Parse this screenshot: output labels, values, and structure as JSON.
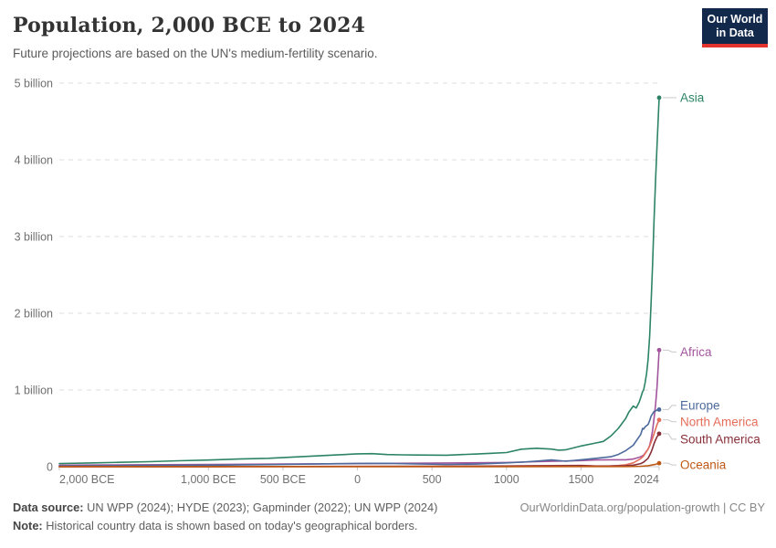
{
  "header": {
    "title": "Population, 2,000 BCE to 2024",
    "subtitle": "Future projections are based on the UN's medium-fertility scenario.",
    "logo": {
      "line1": "Our World",
      "line2": "in Data",
      "bg": "#12294b",
      "accent": "#e5332d"
    }
  },
  "footer": {
    "source_label": "Data source:",
    "source_text": " UN WPP (2024); HYDE (2023); Gapminder (2022); UN WPP (2024)",
    "note_label": "Note:",
    "note_text": " Historical country data is shown based on today's geographical borders.",
    "credit": "OurWorldinData.org/population-growth | CC BY"
  },
  "chart_data": {
    "type": "line",
    "title": "Population, 2,000 BCE to 2024",
    "subtitle": "Future projections are based on the UN's medium-fertility scenario.",
    "unit": "billion people",
    "xlim": [
      -2000,
      2024
    ],
    "ylim": [
      0,
      5
    ],
    "grid": "horizontal-dashed",
    "legend_position": "right-end-labels",
    "colors": {
      "grid": "#dedede",
      "axis": "#c8c8c8",
      "leader": "#c9c9c9"
    },
    "y_ticks": [
      {
        "value": 0,
        "label": "0"
      },
      {
        "value": 1,
        "label": "1 billion"
      },
      {
        "value": 2,
        "label": "2 billion"
      },
      {
        "value": 3,
        "label": "3 billion"
      },
      {
        "value": 4,
        "label": "4 billion"
      },
      {
        "value": 5,
        "label": "5 billion"
      }
    ],
    "x_ticks": [
      {
        "value": -2000,
        "label": "2,000 BCE"
      },
      {
        "value": -1000,
        "label": "1,000 BCE"
      },
      {
        "value": -500,
        "label": "500 BCE"
      },
      {
        "value": 0,
        "label": "0"
      },
      {
        "value": 500,
        "label": "500"
      },
      {
        "value": 1000,
        "label": "1000"
      },
      {
        "value": 1500,
        "label": "1500"
      },
      {
        "value": 2024,
        "label": "2024"
      }
    ],
    "series": [
      {
        "name": "Asia",
        "color": "#2C8465",
        "end_value_billion": 4.81,
        "points": [
          [
            -2000,
            0.042
          ],
          [
            -1800,
            0.049
          ],
          [
            -1600,
            0.057
          ],
          [
            -1400,
            0.066
          ],
          [
            -1200,
            0.077
          ],
          [
            -1000,
            0.087
          ],
          [
            -800,
            0.1
          ],
          [
            -600,
            0.11
          ],
          [
            -400,
            0.128
          ],
          [
            -200,
            0.148
          ],
          [
            0,
            0.168
          ],
          [
            100,
            0.17
          ],
          [
            200,
            0.158
          ],
          [
            300,
            0.155
          ],
          [
            400,
            0.152
          ],
          [
            500,
            0.151
          ],
          [
            600,
            0.15
          ],
          [
            700,
            0.158
          ],
          [
            800,
            0.166
          ],
          [
            900,
            0.175
          ],
          [
            1000,
            0.185
          ],
          [
            1100,
            0.228
          ],
          [
            1200,
            0.24
          ],
          [
            1300,
            0.23
          ],
          [
            1350,
            0.215
          ],
          [
            1400,
            0.222
          ],
          [
            1500,
            0.27
          ],
          [
            1600,
            0.31
          ],
          [
            1650,
            0.33
          ],
          [
            1700,
            0.4
          ],
          [
            1750,
            0.5
          ],
          [
            1800,
            0.63
          ],
          [
            1820,
            0.71
          ],
          [
            1850,
            0.79
          ],
          [
            1870,
            0.765
          ],
          [
            1890,
            0.84
          ],
          [
            1900,
            0.9
          ],
          [
            1913,
            0.98
          ],
          [
            1920,
            1.0
          ],
          [
            1930,
            1.1
          ],
          [
            1940,
            1.22
          ],
          [
            1950,
            1.4
          ],
          [
            1960,
            1.7
          ],
          [
            1970,
            2.14
          ],
          [
            1980,
            2.63
          ],
          [
            1990,
            3.21
          ],
          [
            2000,
            3.74
          ],
          [
            2010,
            4.19
          ],
          [
            2024,
            4.81
          ]
        ]
      },
      {
        "name": "Africa",
        "color": "#A2559C",
        "end_value_billion": 1.52,
        "points": [
          [
            -2000,
            0.02
          ],
          [
            -1500,
            0.025
          ],
          [
            -1000,
            0.03
          ],
          [
            -500,
            0.035
          ],
          [
            0,
            0.04
          ],
          [
            500,
            0.046
          ],
          [
            1000,
            0.055
          ],
          [
            1200,
            0.065
          ],
          [
            1500,
            0.08
          ],
          [
            1600,
            0.088
          ],
          [
            1700,
            0.09
          ],
          [
            1800,
            0.09
          ],
          [
            1850,
            0.1
          ],
          [
            1900,
            0.13
          ],
          [
            1920,
            0.15
          ],
          [
            1950,
            0.23
          ],
          [
            1960,
            0.28
          ],
          [
            1970,
            0.36
          ],
          [
            1980,
            0.47
          ],
          [
            1990,
            0.63
          ],
          [
            2000,
            0.81
          ],
          [
            2010,
            1.04
          ],
          [
            2024,
            1.52
          ]
        ]
      },
      {
        "name": "Europe",
        "color": "#4C6A9C",
        "end_value_billion": 0.745,
        "points": [
          [
            -2000,
            0.01
          ],
          [
            -1500,
            0.015
          ],
          [
            -1000,
            0.02
          ],
          [
            -500,
            0.03
          ],
          [
            -200,
            0.038
          ],
          [
            0,
            0.043
          ],
          [
            200,
            0.044
          ],
          [
            400,
            0.036
          ],
          [
            600,
            0.03
          ],
          [
            800,
            0.034
          ],
          [
            1000,
            0.05
          ],
          [
            1100,
            0.06
          ],
          [
            1200,
            0.073
          ],
          [
            1300,
            0.088
          ],
          [
            1400,
            0.072
          ],
          [
            1500,
            0.09
          ],
          [
            1600,
            0.11
          ],
          [
            1700,
            0.13
          ],
          [
            1750,
            0.16
          ],
          [
            1800,
            0.21
          ],
          [
            1850,
            0.28
          ],
          [
            1900,
            0.42
          ],
          [
            1913,
            0.5
          ],
          [
            1920,
            0.49
          ],
          [
            1930,
            0.52
          ],
          [
            1950,
            0.55
          ],
          [
            1960,
            0.6
          ],
          [
            1970,
            0.66
          ],
          [
            1980,
            0.69
          ],
          [
            1990,
            0.72
          ],
          [
            2000,
            0.726
          ],
          [
            2010,
            0.74
          ],
          [
            2024,
            0.745
          ]
        ]
      },
      {
        "name": "North America",
        "color": "#E56E5A",
        "end_value_billion": 0.61,
        "points": [
          [
            -2000,
            0.001
          ],
          [
            -1000,
            0.002
          ],
          [
            0,
            0.004
          ],
          [
            500,
            0.006
          ],
          [
            1000,
            0.009
          ],
          [
            1400,
            0.015
          ],
          [
            1500,
            0.018
          ],
          [
            1600,
            0.009
          ],
          [
            1700,
            0.011
          ],
          [
            1750,
            0.015
          ],
          [
            1800,
            0.025
          ],
          [
            1850,
            0.05
          ],
          [
            1900,
            0.105
          ],
          [
            1920,
            0.14
          ],
          [
            1950,
            0.23
          ],
          [
            1960,
            0.27
          ],
          [
            1970,
            0.32
          ],
          [
            1980,
            0.37
          ],
          [
            1990,
            0.43
          ],
          [
            2000,
            0.49
          ],
          [
            2010,
            0.55
          ],
          [
            2024,
            0.61
          ]
        ]
      },
      {
        "name": "South America",
        "color": "#883039",
        "end_value_billion": 0.43,
        "points": [
          [
            -2000,
            0.0005
          ],
          [
            -1000,
            0.001
          ],
          [
            0,
            0.003
          ],
          [
            500,
            0.005
          ],
          [
            1000,
            0.008
          ],
          [
            1400,
            0.013
          ],
          [
            1500,
            0.014
          ],
          [
            1600,
            0.007
          ],
          [
            1700,
            0.008
          ],
          [
            1800,
            0.013
          ],
          [
            1850,
            0.02
          ],
          [
            1900,
            0.04
          ],
          [
            1920,
            0.06
          ],
          [
            1950,
            0.11
          ],
          [
            1960,
            0.15
          ],
          [
            1970,
            0.19
          ],
          [
            1980,
            0.24
          ],
          [
            1990,
            0.3
          ],
          [
            2000,
            0.35
          ],
          [
            2010,
            0.39
          ],
          [
            2024,
            0.43
          ]
        ]
      },
      {
        "name": "Oceania",
        "color": "#BE5915",
        "end_value_billion": 0.046,
        "points": [
          [
            -2000,
            0.0004
          ],
          [
            -1000,
            0.0006
          ],
          [
            0,
            0.001
          ],
          [
            500,
            0.001
          ],
          [
            1000,
            0.0012
          ],
          [
            1500,
            0.002
          ],
          [
            1700,
            0.002
          ],
          [
            1800,
            0.002
          ],
          [
            1850,
            0.003
          ],
          [
            1900,
            0.006
          ],
          [
            1950,
            0.013
          ],
          [
            1970,
            0.02
          ],
          [
            1990,
            0.027
          ],
          [
            2000,
            0.031
          ],
          [
            2010,
            0.037
          ],
          [
            2024,
            0.046
          ]
        ]
      }
    ]
  }
}
